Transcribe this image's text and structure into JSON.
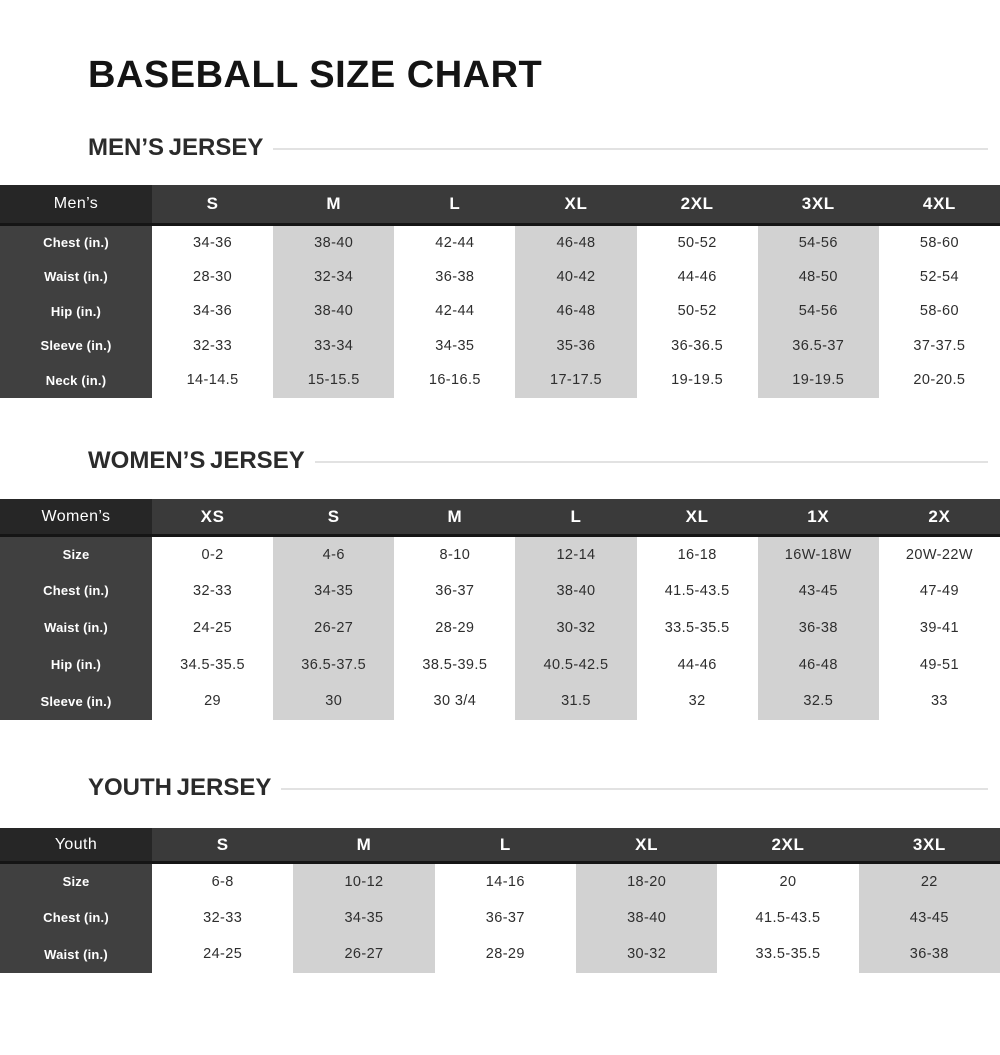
{
  "title": "BASEBALL SIZE CHART",
  "colors": {
    "header_dark": "#262626",
    "header_gray": "#3a3a3a",
    "label_column": "#404040",
    "shaded_column": "#d2d2d2",
    "header_border": "#151515",
    "divider_rule": "#e2e2e2",
    "body_text": "#2e2e2e"
  },
  "sections": [
    {
      "heading": "MEN’S JERSEY",
      "table": {
        "corner_label": "Men’s",
        "sizes": [
          "S",
          "M",
          "L",
          "XL",
          "2XL",
          "3XL",
          "4XL"
        ],
        "shaded_size_indexes": [
          1,
          3,
          5
        ],
        "rows": [
          {
            "label": "Chest (in.)",
            "values": [
              "34-36",
              "38-40",
              "42-44",
              "46-48",
              "50-52",
              "54-56",
              "58-60"
            ]
          },
          {
            "label": "Waist (in.)",
            "values": [
              "28-30",
              "32-34",
              "36-38",
              "40-42",
              "44-46",
              "48-50",
              "52-54"
            ]
          },
          {
            "label": "Hip (in.)",
            "values": [
              "34-36",
              "38-40",
              "42-44",
              "46-48",
              "50-52",
              "54-56",
              "58-60"
            ]
          },
          {
            "label": "Sleeve (in.)",
            "values": [
              "32-33",
              "33-34",
              "34-35",
              "35-36",
              "36-36.5",
              "36.5-37",
              "37-37.5"
            ]
          },
          {
            "label": "Neck (in.)",
            "values": [
              "14-14.5",
              "15-15.5",
              "16-16.5",
              "17-17.5",
              "19-19.5",
              "19-19.5",
              "20-20.5"
            ]
          }
        ]
      }
    },
    {
      "heading": "WOMEN’S JERSEY",
      "table": {
        "corner_label": "Women’s",
        "sizes": [
          "XS",
          "S",
          "M",
          "L",
          "XL",
          "1X",
          "2X"
        ],
        "shaded_size_indexes": [
          1,
          3,
          5
        ],
        "rows": [
          {
            "label": "Size",
            "values": [
              "0-2",
              "4-6",
              "8-10",
              "12-14",
              "16-18",
              "16W-18W",
              "20W-22W"
            ]
          },
          {
            "label": "Chest (in.)",
            "values": [
              "32-33",
              "34-35",
              "36-37",
              "38-40",
              "41.5-43.5",
              "43-45",
              "47-49"
            ]
          },
          {
            "label": "Waist (in.)",
            "values": [
              "24-25",
              "26-27",
              "28-29",
              "30-32",
              "33.5-35.5",
              "36-38",
              "39-41"
            ]
          },
          {
            "label": "Hip (in.)",
            "values": [
              "34.5-35.5",
              "36.5-37.5",
              "38.5-39.5",
              "40.5-42.5",
              "44-46",
              "46-48",
              "49-51"
            ]
          },
          {
            "label": "Sleeve (in.)",
            "values": [
              "29",
              "30",
              "30 3/4",
              "31.5",
              "32",
              "32.5",
              "33"
            ]
          }
        ]
      }
    },
    {
      "heading": "YOUTH JERSEY",
      "table": {
        "corner_label": "Youth",
        "sizes": [
          "S",
          "M",
          "L",
          "XL",
          "2XL",
          "3XL"
        ],
        "shaded_size_indexes": [
          1,
          3,
          5
        ],
        "rows": [
          {
            "label": "Size",
            "values": [
              "6-8",
              "10-12",
              "14-16",
              "18-20",
              "20",
              "22"
            ]
          },
          {
            "label": "Chest (in.)",
            "values": [
              "32-33",
              "34-35",
              "36-37",
              "38-40",
              "41.5-43.5",
              "43-45"
            ]
          },
          {
            "label": "Waist (in.)",
            "values": [
              "24-25",
              "26-27",
              "28-29",
              "30-32",
              "33.5-35.5",
              "36-38"
            ]
          }
        ]
      }
    }
  ]
}
